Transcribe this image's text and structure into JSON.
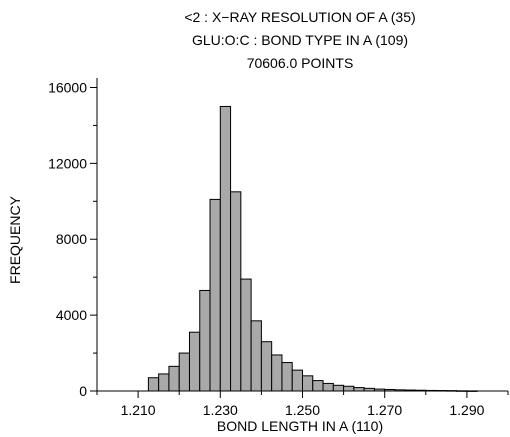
{
  "chart_data": {
    "type": "bar",
    "title_lines": [
      "<2 : X−RAY RESOLUTION OF A (35)",
      "GLU:O:C : BOND TYPE IN A (109)",
      "70606.0 POINTS"
    ],
    "xlabel": "BOND LENGTH IN A (110)",
    "ylabel": "FREQUENCY",
    "xlim": [
      1.2,
      1.3
    ],
    "ylim": [
      0,
      16500
    ],
    "x_ticks": [
      1.21,
      1.23,
      1.25,
      1.27,
      1.29
    ],
    "x_tick_labels": [
      "1.210",
      "1.230",
      "1.250",
      "1.270",
      "1.290"
    ],
    "y_ticks": [
      0,
      4000,
      8000,
      12000,
      16000
    ],
    "y_tick_labels": [
      "0",
      "4000",
      "8000",
      "12000",
      "16000"
    ],
    "bin_width": 0.0025,
    "bins_start": [
      1.20625,
      1.2125,
      1.215,
      1.2175,
      1.22,
      1.2225,
      1.225,
      1.2275,
      1.23,
      1.2325,
      1.235,
      1.2375,
      1.24,
      1.2425,
      1.245,
      1.2475,
      1.25,
      1.2525,
      1.255,
      1.2575,
      1.26,
      1.2625,
      1.265,
      1.2675,
      1.27,
      1.2725,
      1.275,
      1.2775,
      1.28,
      1.2825,
      1.285,
      1.2875,
      1.29
    ],
    "values": [
      0,
      700,
      900,
      1300,
      2000,
      3100,
      5300,
      10100,
      15000,
      10500,
      5900,
      3700,
      2600,
      1900,
      1500,
      1100,
      800,
      550,
      400,
      300,
      250,
      180,
      140,
      100,
      80,
      60,
      50,
      40,
      30,
      25,
      20,
      10,
      5
    ],
    "bar_color": "#a9a9a9",
    "edge_color": "#000000",
    "grid": false
  }
}
